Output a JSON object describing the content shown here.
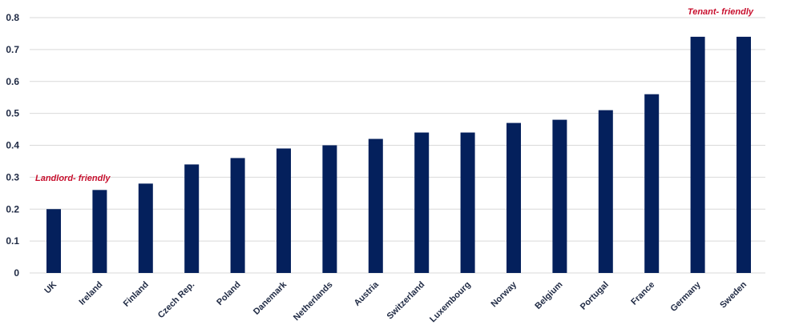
{
  "colors": {
    "bar": "#04205c",
    "annotation": "#c8102e",
    "grid": "#d9d9d9",
    "text": "#1f2a44"
  },
  "chart_data": {
    "type": "bar",
    "categories": [
      "UK",
      "Ireland",
      "Finland",
      "Czech Rep.",
      "Poland",
      "Danemark",
      "Netherlands",
      "Austria",
      "Switzerland",
      "Luxembourg",
      "Norway",
      "Belgium",
      "Portugal",
      "France",
      "Germany",
      "Sweden"
    ],
    "values": [
      0.2,
      0.26,
      0.28,
      0.34,
      0.36,
      0.39,
      0.4,
      0.42,
      0.44,
      0.44,
      0.47,
      0.48,
      0.51,
      0.56,
      0.74,
      0.74
    ],
    "yticks": [
      "0",
      "0.1",
      "0.2",
      "0.3",
      "0.4",
      "0.5",
      "0.6",
      "0.7",
      "0.8"
    ],
    "ylim": [
      0,
      0.8
    ],
    "grid": true,
    "legend": "none",
    "annotations": {
      "left": "Landlord- friendly",
      "right": "Tenant- friendly"
    }
  }
}
